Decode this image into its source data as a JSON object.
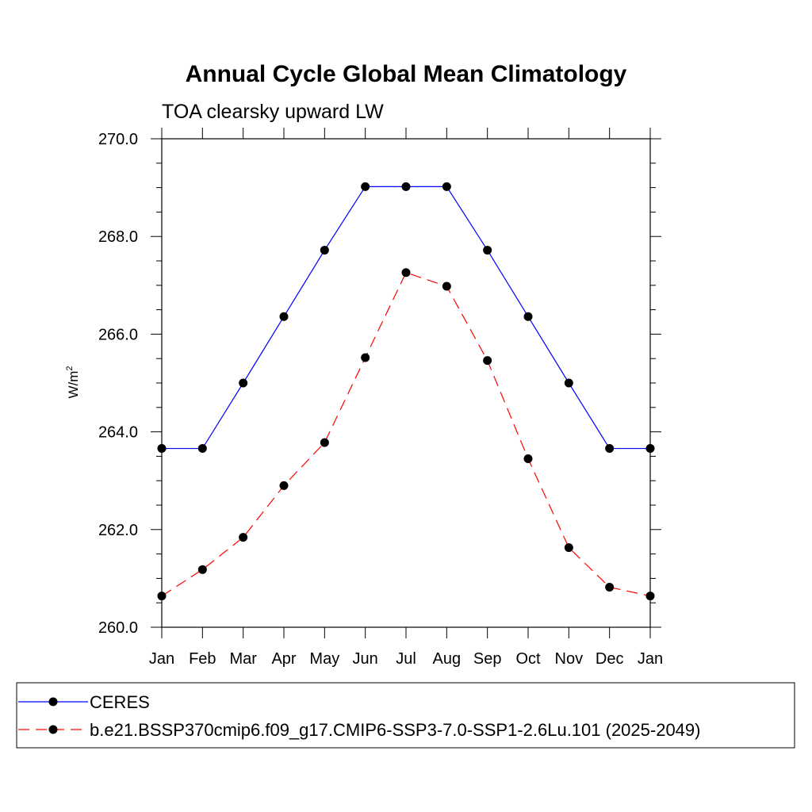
{
  "chart_data": {
    "type": "line",
    "title": "Annual Cycle Global Mean Climatology",
    "subtitle": "TOA clearsky upward LW",
    "ylabel": "W/m",
    "ylabel_superscript": "2",
    "ylim": [
      260.0,
      270.0
    ],
    "yticks": [
      "260.0",
      "262.0",
      "264.0",
      "266.0",
      "268.0",
      "270.0"
    ],
    "categories": [
      "Jan",
      "Feb",
      "Mar",
      "Apr",
      "May",
      "Jun",
      "Jul",
      "Aug",
      "Sep",
      "Oct",
      "Nov",
      "Dec",
      "Jan"
    ],
    "grid": false,
    "legend_position": "bottom",
    "series": [
      {
        "name": "CERES",
        "color": "#0000ff",
        "dash": "solid",
        "marker": "circle",
        "values": [
          263.66,
          263.66,
          265.0,
          266.36,
          267.72,
          269.02,
          269.02,
          269.02,
          267.72,
          266.36,
          265.0,
          263.66,
          263.66
        ]
      },
      {
        "name": "b.e21.BSSP370cmip6.f09_g17.CMIP6-SSP3-7.0-SSP1-2.6Lu.101 (2025-2049)",
        "color": "#ff0000",
        "dash": "dashed",
        "marker": "circle",
        "values": [
          260.64,
          261.18,
          261.84,
          262.9,
          263.78,
          265.52,
          267.26,
          266.98,
          265.46,
          263.45,
          261.63,
          260.82,
          260.64
        ]
      }
    ]
  }
}
